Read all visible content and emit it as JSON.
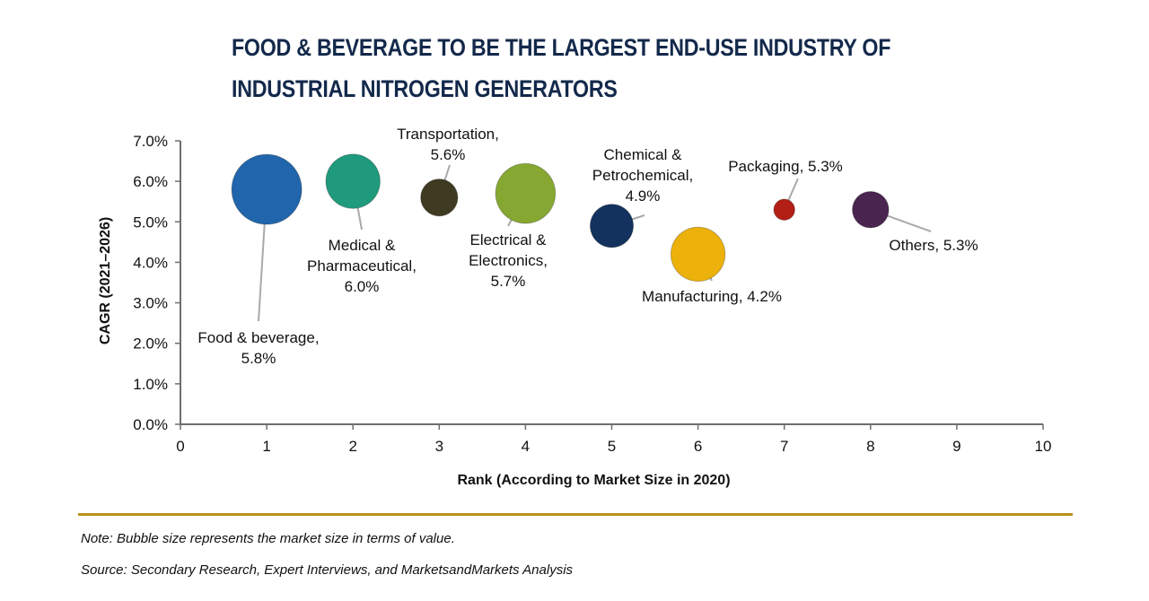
{
  "title": "FOOD & BEVERAGE TO BE THE LARGEST END-USE INDUSTRY OF INDUSTRIAL NITROGEN GENERATORS",
  "note": "Note: Bubble size represents the market size in terms of value.",
  "source": "Source: Secondary Research, Expert Interviews, and MarketsandMarkets Analysis",
  "chart_data": {
    "type": "scatter",
    "subtype": "bubble",
    "title": "FOOD & BEVERAGE TO BE THE LARGEST END-USE INDUSTRY OF INDUSTRIAL NITROGEN GENERATORS",
    "xlabel": "Rank (According to Market Size in 2020)",
    "ylabel": "CAGR (2021–2026)",
    "xlim": [
      0,
      10
    ],
    "ylim": [
      0,
      7
    ],
    "xticks": [
      "0",
      "1",
      "2",
      "3",
      "4",
      "5",
      "6",
      "7",
      "8",
      "9",
      "10"
    ],
    "yticks": [
      "0.0%",
      "1.0%",
      "2.0%",
      "3.0%",
      "4.0%",
      "5.0%",
      "6.0%",
      "7.0%"
    ],
    "grid": false,
    "legend": "none",
    "points": [
      {
        "name": "Food & beverage",
        "x": 1,
        "y": 5.8,
        "relative_size": 1.0,
        "color": "#2166ac",
        "label_lines": [
          "Food & beverage,",
          "5.8%"
        ]
      },
      {
        "name": "Medical & Pharmaceutical",
        "x": 2,
        "y": 6.0,
        "relative_size": 0.6,
        "color": "#1f9a7c",
        "label_lines": [
          "Medical &",
          "Pharmaceutical,",
          "6.0%"
        ]
      },
      {
        "name": "Transportation",
        "x": 3,
        "y": 5.6,
        "relative_size": 0.28,
        "color": "#3f3a22",
        "label_lines": [
          "Transportation,",
          "5.6%"
        ]
      },
      {
        "name": "Electrical & Electronics",
        "x": 4,
        "y": 5.7,
        "relative_size": 0.73,
        "color": "#86a832",
        "label_lines": [
          "Electrical &",
          "Electronics,",
          "5.7%"
        ]
      },
      {
        "name": "Chemical & Petrochemical",
        "x": 5,
        "y": 4.9,
        "relative_size": 0.38,
        "color": "#13325e",
        "label_lines": [
          "Chemical &",
          "Petrochemical,",
          "4.9%"
        ]
      },
      {
        "name": "Manufacturing",
        "x": 6,
        "y": 4.2,
        "relative_size": 0.6,
        "color": "#ecb10a",
        "label_lines": [
          "Manufacturing, 4.2%"
        ]
      },
      {
        "name": "Packaging",
        "x": 7,
        "y": 5.3,
        "relative_size": 0.09,
        "color": "#b31e15",
        "label_lines": [
          "Packaging, 5.3%"
        ]
      },
      {
        "name": "Others",
        "x": 8,
        "y": 5.3,
        "relative_size": 0.27,
        "color": "#4a2550",
        "label_lines": [
          "Others, 5.3%"
        ]
      }
    ]
  }
}
